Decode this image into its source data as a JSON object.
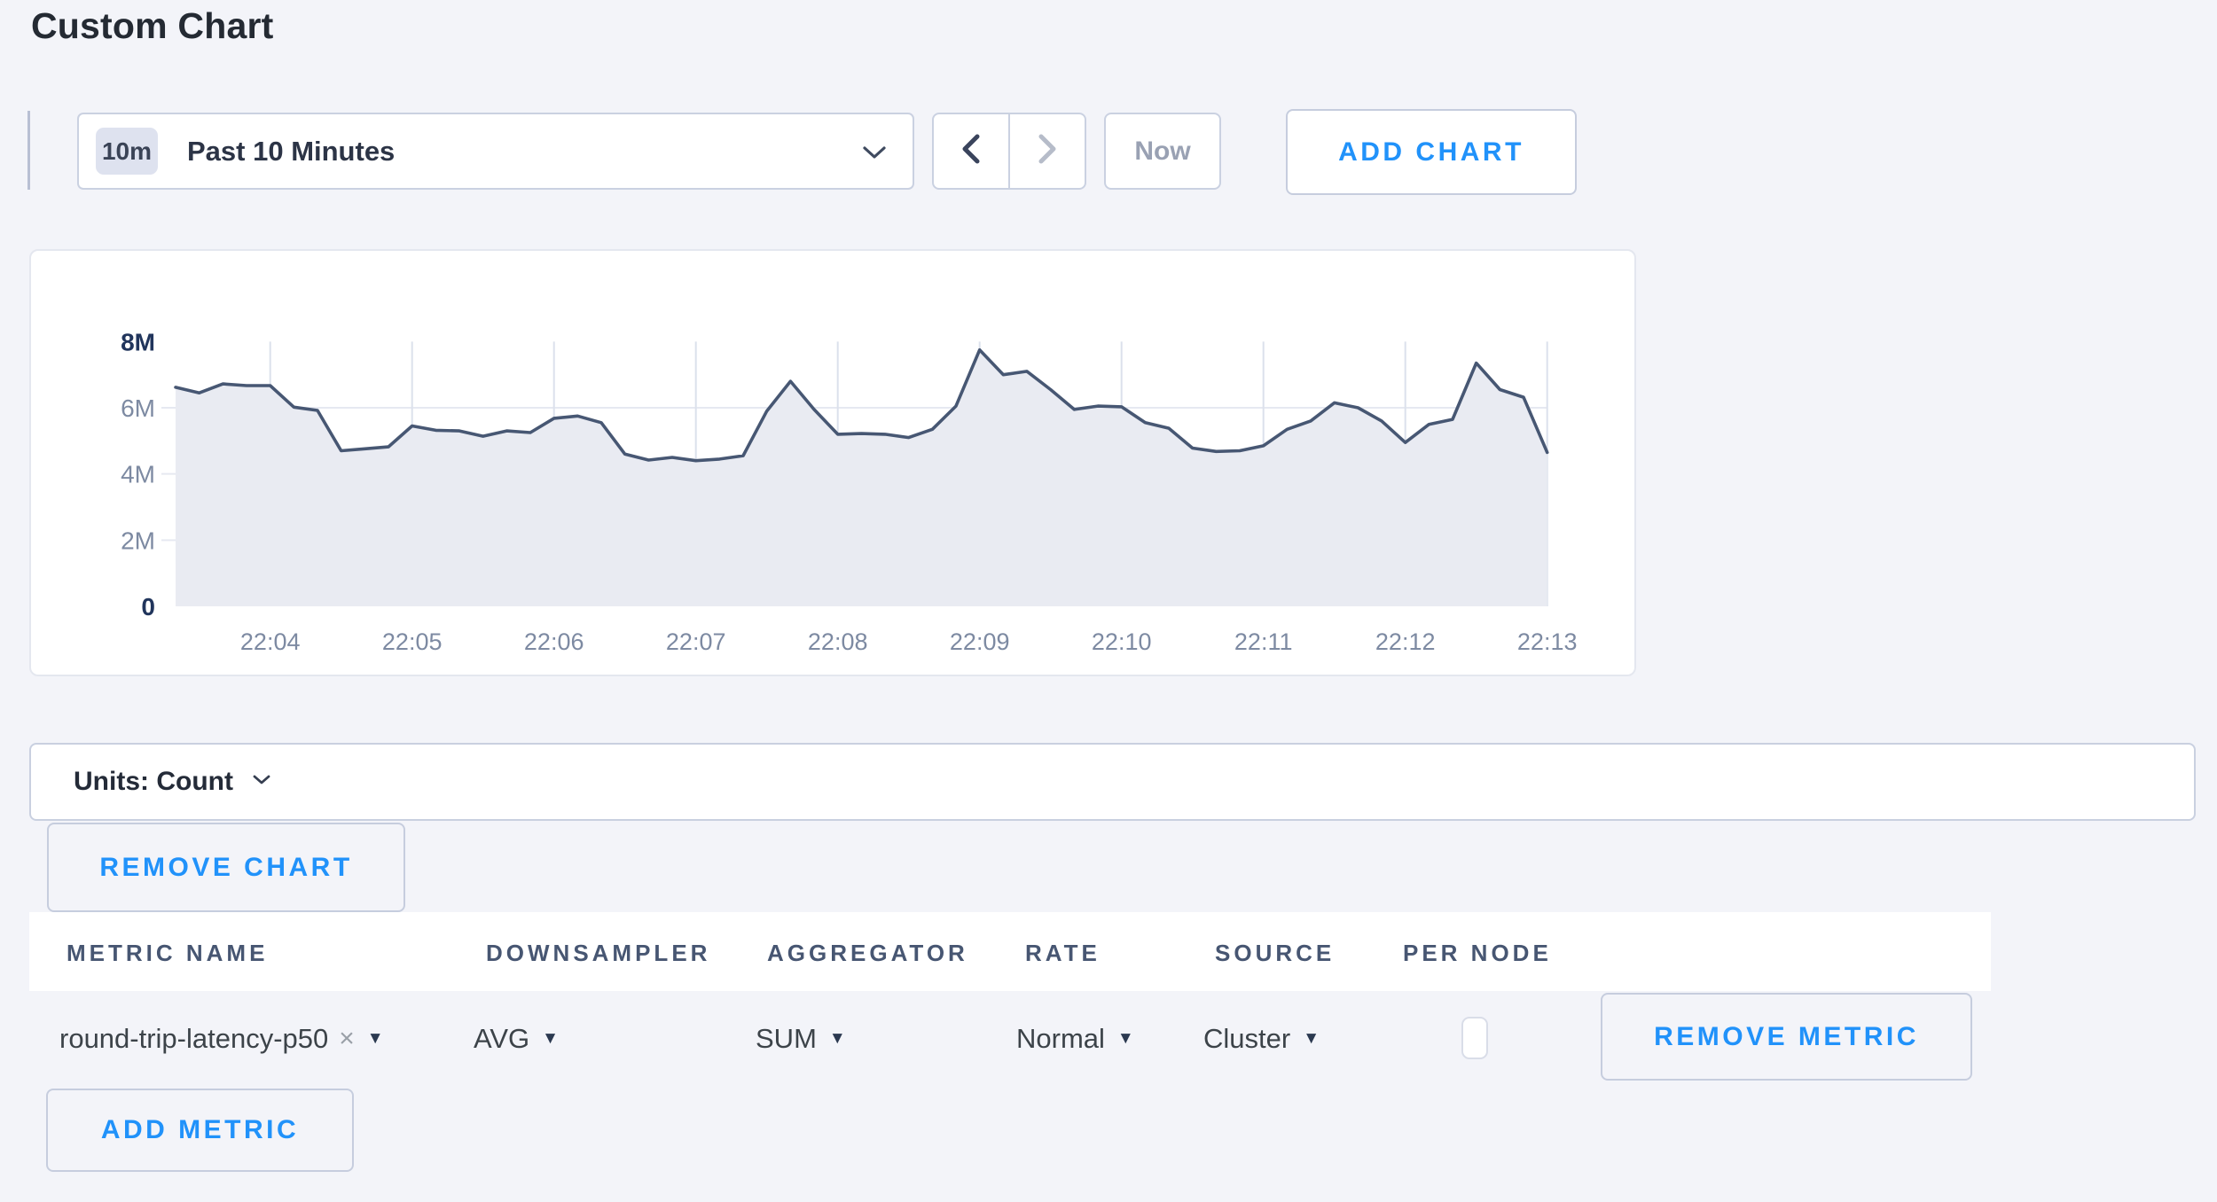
{
  "page": {
    "title": "Custom Chart"
  },
  "toolbar": {
    "range_badge": "10m",
    "range_label": "Past 10 Minutes",
    "now_label": "Now",
    "add_chart_label": "ADD CHART"
  },
  "chart_data": {
    "type": "area",
    "title": "",
    "xlabel": "",
    "ylabel": "",
    "unit": "Count",
    "start_time": "22:03:20",
    "sample_interval_seconds": 10,
    "x_tick_labels": [
      "22:04",
      "22:05",
      "22:06",
      "22:07",
      "22:08",
      "22:09",
      "22:10",
      "22:11",
      "22:12",
      "22:13"
    ],
    "y_tick_labels": [
      "0",
      "2M",
      "4M",
      "6M",
      "8M"
    ],
    "y_tick_values_millions": [
      0,
      2,
      4,
      6,
      8
    ],
    "ylim_millions": [
      0,
      8
    ],
    "grid": true,
    "legend": "none",
    "line_color": "#475773",
    "fill_color": "#e9ebf2",
    "series": [
      {
        "name": "round-trip-latency-p50",
        "values_millions": [
          6.62,
          6.45,
          6.72,
          6.67,
          6.67,
          6.02,
          5.92,
          4.7,
          4.76,
          4.82,
          5.45,
          5.32,
          5.3,
          5.14,
          5.3,
          5.25,
          5.68,
          5.75,
          5.55,
          4.6,
          4.42,
          4.5,
          4.4,
          4.45,
          4.55,
          5.9,
          6.8,
          5.95,
          5.2,
          5.22,
          5.2,
          5.1,
          5.35,
          6.05,
          7.75,
          7.0,
          7.1,
          6.55,
          5.95,
          6.05,
          6.03,
          5.55,
          5.38,
          4.78,
          4.68,
          4.7,
          4.85,
          5.35,
          5.6,
          6.15,
          6.0,
          5.6,
          4.95,
          5.5,
          5.65,
          7.35,
          6.55,
          6.32,
          4.65
        ]
      }
    ]
  },
  "units_bar": {
    "label": "Units: Count"
  },
  "chart_actions": {
    "remove_chart_label": "REMOVE CHART"
  },
  "metrics_table": {
    "headers": [
      "METRIC NAME",
      "DOWNSAMPLER",
      "AGGREGATOR",
      "RATE",
      "SOURCE",
      "PER NODE"
    ],
    "caret_glyph": "▼",
    "clear_glyph": "×",
    "rows": [
      {
        "metric_name": "round-trip-latency-p50",
        "downsampler": "AVG",
        "aggregator": "SUM",
        "rate": "Normal",
        "source": "Cluster",
        "per_node_checked": false,
        "remove_label": "REMOVE METRIC"
      }
    ],
    "add_metric_label": "ADD METRIC"
  },
  "colors": {
    "page_bg": "#f3f4f9",
    "accent_blue": "#2192fa",
    "axis_label_gray": "#7d8aa2",
    "axis_label_dark": "#21355c",
    "grid_horizontal": "#e6e9f1",
    "grid_vertical": "#dce1ec"
  }
}
